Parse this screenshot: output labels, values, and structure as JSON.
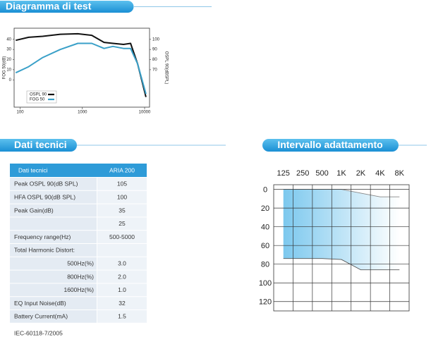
{
  "headers": [
    "Diagramma di test",
    "Dati tecnici",
    "Intervallo adattamento"
  ],
  "chart_data": [
    {
      "type": "line",
      "xscale": "log",
      "x": [
        85,
        137,
        230,
        441,
        844,
        1417,
        2231,
        3095,
        4580,
        5943,
        7695,
        10500
      ],
      "xlim": [
        80,
        12000
      ],
      "xticks": [
        100,
        1000,
        10000
      ],
      "ylim": [
        -27,
        51
      ],
      "yticks": [
        0,
        10,
        20,
        30,
        40
      ],
      "y2lim": [
        33,
        111
      ],
      "y2ticks": [
        70,
        80,
        90,
        100
      ],
      "ylabel": "FOG 50(dB)",
      "y2label": "OSPL 90(dBSPL)",
      "legend": "lower left",
      "series": [
        {
          "name": "OSPL 90",
          "color": "#111111",
          "axis": "y2",
          "values": [
            99,
            102,
            103,
            105,
            105.5,
            104,
            97,
            96,
            95,
            96,
            76,
            43
          ]
        },
        {
          "name": "FOG 50",
          "color": "#3aa0c8",
          "values": [
            7,
            13,
            22,
            30,
            36,
            36,
            31,
            33,
            31,
            31,
            16,
            -14
          ]
        }
      ]
    },
    {
      "type": "range-area",
      "categories": [
        "125",
        "250",
        "500",
        "1K",
        "2K",
        "4K",
        "8K"
      ],
      "ylim": [
        -5,
        130
      ],
      "yticks": [
        0,
        20,
        40,
        60,
        80,
        100,
        120
      ],
      "y_inverted": true,
      "grid": true,
      "color": "#7cc8ee",
      "series": [
        {
          "values": [
            0,
            0,
            0,
            0,
            4,
            8,
            8
          ]
        },
        {
          "values": [
            74,
            74,
            74,
            75,
            86,
            86,
            86
          ]
        }
      ]
    }
  ],
  "table": {
    "header": [
      "Dati tecnici",
      "ARIA 200"
    ],
    "rows": [
      [
        "Peak OSPL 90(dB SPL)",
        "105"
      ],
      [
        "HFA OSPL 90(dB SPL)",
        "100"
      ],
      [
        "Peak Gain(dB)",
        "35"
      ],
      [
        null,
        "25"
      ],
      [
        "Frequency range(Hz)",
        "500-5000"
      ],
      [
        "Total Harmonic Distort:",
        null
      ],
      [
        "500Hz(%)",
        "3.0"
      ],
      [
        "800Hz(%)",
        "2.0"
      ],
      [
        "1600Hz(%)",
        "1.0"
      ],
      [
        "EQ Input Noise(dB)",
        "32"
      ],
      [
        "Battery Current(mA)",
        "1.5"
      ]
    ]
  },
  "footnote": "IEC-60118-7/2005"
}
